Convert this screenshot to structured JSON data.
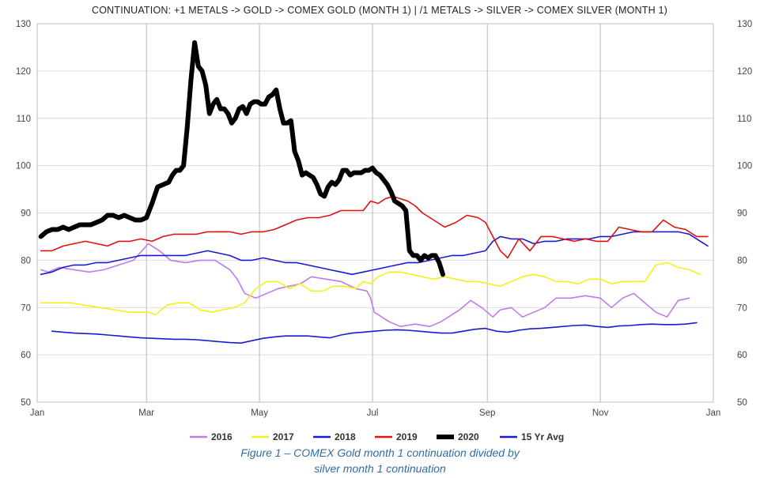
{
  "chart_data": {
    "type": "line",
    "title": "CONTINUATION: +1 METALS -> GOLD -> COMEX GOLD (MONTH 1) | /1 METALS -> SILVER -> COMEX SILVER (MONTH 1)",
    "xlabel": "",
    "ylabel": "",
    "xlim": [
      0,
      365
    ],
    "ylim": [
      50,
      130
    ],
    "y_ticks": [
      50,
      60,
      70,
      80,
      90,
      100,
      110,
      120,
      130
    ],
    "x_ticks": [
      {
        "label": "Jan",
        "day": 0
      },
      {
        "label": "Mar",
        "day": 59
      },
      {
        "label": "May",
        "day": 120
      },
      {
        "label": "Jul",
        "day": 181
      },
      {
        "label": "Sep",
        "day": 243
      },
      {
        "label": "Nov",
        "day": 304
      },
      {
        "label": "Jan",
        "day": 365
      }
    ],
    "grid": true,
    "legend_position": "bottom",
    "series": [
      {
        "name": "2016",
        "color": "#c07be8",
        "width": 1.6,
        "x": [
          2,
          6,
          12,
          20,
          28,
          36,
          44,
          52,
          60,
          66,
          72,
          80,
          88,
          96,
          104,
          108,
          112,
          118,
          124,
          130,
          136,
          142,
          148,
          156,
          164,
          172,
          178,
          180,
          182,
          186,
          190,
          196,
          204,
          212,
          218,
          222,
          228,
          234,
          240,
          246,
          250,
          256,
          262,
          268,
          274,
          280,
          288,
          296,
          304,
          310,
          316,
          322,
          328,
          334,
          340,
          346,
          352
        ],
        "values": [
          78,
          77.5,
          78.5,
          78,
          77.5,
          78,
          79,
          80,
          83.5,
          82,
          80,
          79.5,
          80,
          80,
          78,
          76,
          73,
          72,
          73,
          74,
          74.5,
          75,
          76.5,
          76,
          75.5,
          74,
          73.5,
          72,
          69,
          68,
          67,
          66,
          66.5,
          66,
          67,
          68,
          69.5,
          71.5,
          70,
          68,
          69.5,
          70,
          68,
          69,
          70,
          72,
          72,
          72.5,
          72,
          70,
          72,
          73,
          71,
          69,
          68,
          71.5,
          72
        ]
      },
      {
        "name": "2017",
        "color": "#f5f01a",
        "width": 1.6,
        "x": [
          2,
          10,
          18,
          26,
          34,
          42,
          50,
          56,
          60,
          64,
          70,
          76,
          82,
          88,
          94,
          100,
          106,
          112,
          118,
          124,
          130,
          136,
          142,
          148,
          154,
          160,
          166,
          172,
          176,
          180,
          184,
          190,
          196,
          202,
          208,
          214,
          220,
          226,
          232,
          238,
          244,
          250,
          256,
          262,
          268,
          274,
          280,
          286,
          292,
          298,
          304,
          310,
          316,
          322,
          328,
          334,
          340,
          346,
          352,
          358
        ],
        "values": [
          71,
          71,
          71,
          70.5,
          70,
          69.5,
          69,
          69,
          69,
          68.5,
          70.5,
          71,
          71,
          69.5,
          69,
          69.5,
          70,
          71,
          74,
          75.5,
          75.5,
          74,
          75,
          73.5,
          73.5,
          74.5,
          74.5,
          74,
          75.5,
          75,
          76.5,
          77.5,
          77.5,
          77,
          76.5,
          76,
          76.5,
          76,
          75.5,
          75.5,
          75,
          74.5,
          75.5,
          76.5,
          77,
          76.5,
          75.5,
          75.5,
          75,
          76,
          76,
          75,
          75.5,
          75.5,
          75.5,
          79,
          79.5,
          78.5,
          78,
          77
        ]
      },
      {
        "name": "2018",
        "color": "#1a1ad1",
        "width": 1.6,
        "x": [
          2,
          8,
          14,
          20,
          26,
          32,
          38,
          44,
          50,
          56,
          62,
          68,
          74,
          80,
          86,
          92,
          98,
          104,
          110,
          116,
          122,
          128,
          134,
          140,
          146,
          152,
          158,
          164,
          170,
          176,
          182,
          188,
          194,
          200,
          206,
          212,
          218,
          224,
          230,
          236,
          242,
          246,
          250,
          256,
          262,
          268,
          274,
          280,
          286,
          292,
          298,
          304,
          310,
          316,
          322,
          328,
          334,
          340,
          346,
          352,
          358,
          362
        ],
        "values": [
          77,
          77.5,
          78.5,
          79,
          79,
          79.5,
          79.5,
          80,
          80.5,
          81,
          81,
          81,
          81,
          81,
          81.5,
          82,
          81.5,
          81,
          80,
          80,
          80.5,
          80,
          79.5,
          79.5,
          79,
          78.5,
          78,
          77.5,
          77,
          77.5,
          78,
          78.5,
          79,
          79.5,
          79.5,
          80,
          80.5,
          81,
          81,
          81.5,
          82,
          84,
          85,
          84.5,
          84.5,
          83.5,
          84,
          84,
          84.5,
          84.5,
          84.5,
          85,
          85,
          85.5,
          86,
          86,
          86,
          86,
          86,
          85.5,
          84,
          83
        ]
      },
      {
        "name": "2019",
        "color": "#e01010",
        "width": 1.6,
        "x": [
          2,
          8,
          14,
          20,
          26,
          32,
          38,
          44,
          50,
          56,
          62,
          68,
          74,
          80,
          86,
          92,
          98,
          104,
          110,
          116,
          122,
          128,
          134,
          140,
          146,
          152,
          158,
          164,
          170,
          176,
          180,
          184,
          188,
          192,
          196,
          200,
          204,
          208,
          214,
          220,
          226,
          232,
          238,
          242,
          246,
          250,
          254,
          260,
          266,
          272,
          278,
          284,
          290,
          296,
          302,
          308,
          314,
          320,
          326,
          332,
          338,
          344,
          350,
          356,
          362
        ],
        "values": [
          82,
          82,
          83,
          83.5,
          84,
          83.5,
          83,
          84,
          84,
          84.5,
          84,
          85,
          85.5,
          85.5,
          85.5,
          86,
          86,
          86,
          85.5,
          86,
          86,
          86.5,
          87.5,
          88.5,
          89,
          89,
          89.5,
          90.5,
          90.5,
          90.5,
          92.5,
          92,
          93,
          93.5,
          93,
          92.5,
          91.5,
          90,
          88.5,
          87,
          88,
          89.5,
          89,
          88,
          85,
          82,
          80.5,
          84.5,
          82,
          85,
          85,
          84.5,
          84,
          84.5,
          84,
          84,
          87,
          86.5,
          86,
          86,
          88.5,
          87,
          86.5,
          85,
          85
        ]
      },
      {
        "name": "2020",
        "color": "#000000",
        "width": 6,
        "x": [
          2,
          5,
          8,
          11,
          14,
          17,
          20,
          23,
          26,
          29,
          32,
          35,
          38,
          41,
          44,
          47,
          50,
          53,
          56,
          59,
          62,
          65,
          68,
          71,
          73,
          75,
          77,
          79,
          81,
          83,
          85,
          87,
          89,
          91,
          93,
          95,
          97,
          99,
          101,
          103,
          105,
          107,
          109,
          111,
          113,
          115,
          117,
          119,
          121,
          123,
          125,
          127,
          129,
          131,
          133,
          135,
          137,
          139,
          141,
          143,
          145,
          147,
          149,
          151,
          153,
          155,
          157,
          159,
          161,
          163,
          165,
          167,
          169,
          171,
          173,
          175,
          177,
          179,
          181,
          183,
          185,
          187,
          189,
          191,
          193,
          195,
          197,
          199,
          201,
          203,
          205,
          207,
          209,
          211,
          213,
          215,
          217,
          219
        ],
        "values": [
          85,
          86,
          86.5,
          86.5,
          87,
          86.5,
          87,
          87.5,
          87.5,
          87.5,
          88,
          88.5,
          89.5,
          89.5,
          89,
          89.5,
          89,
          88.5,
          88.5,
          89,
          92,
          95.5,
          96,
          96.5,
          98,
          99,
          99,
          100,
          108,
          118,
          126,
          121,
          120,
          117,
          111,
          113,
          114,
          112,
          112,
          111,
          109,
          110,
          112,
          112.5,
          111,
          113,
          113.5,
          113.5,
          113,
          113,
          114.5,
          115,
          116,
          112,
          109,
          109,
          109.5,
          103,
          101,
          98,
          98.5,
          98,
          97.5,
          96,
          94,
          93.5,
          95.5,
          96.5,
          96,
          97,
          99,
          99,
          98,
          98.5,
          98.5,
          98.5,
          99,
          99,
          99.5,
          98.5,
          98,
          97,
          96,
          94.5,
          92.5,
          92,
          91.5,
          90.5,
          82,
          81,
          81,
          80,
          81,
          80.5,
          81,
          81,
          79.5,
          77
        ]
      },
      {
        "name": "15 Yr Avg",
        "color": "#1a1ad1",
        "width": 1.6,
        "x": [
          8,
          14,
          20,
          26,
          32,
          38,
          44,
          50,
          56,
          62,
          68,
          74,
          80,
          86,
          92,
          98,
          104,
          110,
          116,
          122,
          128,
          134,
          140,
          146,
          152,
          158,
          164,
          170,
          176,
          182,
          188,
          194,
          200,
          206,
          212,
          218,
          224,
          230,
          236,
          242,
          248,
          254,
          260,
          266,
          272,
          278,
          284,
          290,
          296,
          302,
          308,
          314,
          320,
          326,
          332,
          338,
          344,
          350,
          356
        ],
        "values": [
          65,
          64.8,
          64.6,
          64.5,
          64.4,
          64.2,
          64,
          63.8,
          63.6,
          63.5,
          63.4,
          63.3,
          63.3,
          63.2,
          63,
          62.8,
          62.6,
          62.5,
          63,
          63.5,
          63.8,
          64,
          64,
          64,
          63.8,
          63.6,
          64.2,
          64.6,
          64.8,
          65,
          65.2,
          65.3,
          65.2,
          65,
          64.8,
          64.6,
          64.6,
          65,
          65.4,
          65.6,
          65,
          64.8,
          65.2,
          65.5,
          65.6,
          65.8,
          66,
          66.2,
          66.3,
          66,
          65.8,
          66.1,
          66.2,
          66.4,
          66.5,
          66.4,
          66.4,
          66.5,
          66.8
        ]
      }
    ]
  },
  "caption": {
    "line1": "Figure 1 – COMEX Gold month 1 continuation divided by",
    "line2": "silver month 1 continuation"
  }
}
